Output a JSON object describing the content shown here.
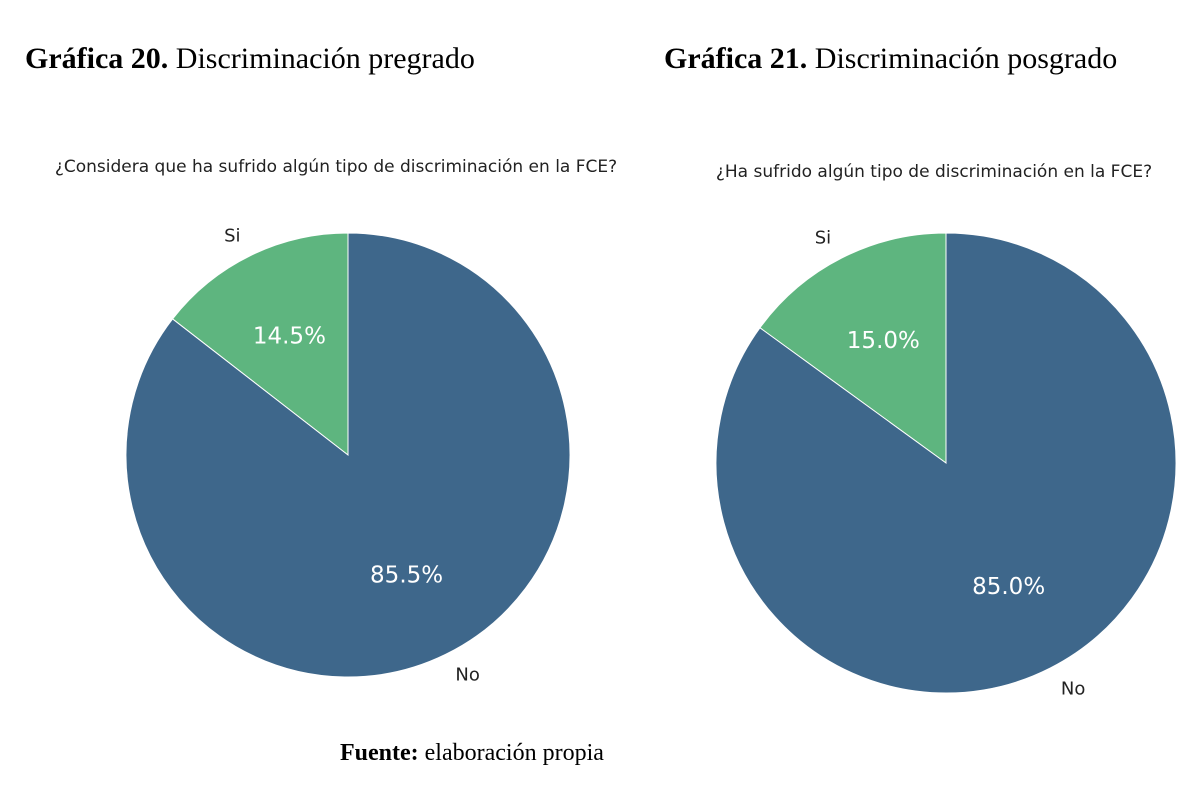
{
  "captions": [
    {
      "number": "Gráfica 20.",
      "text": "Discriminación pregrado"
    },
    {
      "number": "Gráfica 21.",
      "text": "Discriminación posgrado"
    }
  ],
  "source": {
    "label": "Fuente:",
    "text": "elaboración propia"
  },
  "colors": {
    "Si": "#5eb57f",
    "No": "#3e678b"
  },
  "chart_data": [
    {
      "type": "pie",
      "title": "¿Considera que ha sufrido algún tipo de discriminación en la FCE?",
      "categories": [
        "Si",
        "No"
      ],
      "values": [
        14.5,
        85.5
      ],
      "pct_labels": [
        "14.5%",
        "85.5%"
      ],
      "start_angle": "top, counterclockwise"
    },
    {
      "type": "pie",
      "title": "¿Ha sufrido algún tipo de discriminación en la FCE?",
      "categories": [
        "Si",
        "No"
      ],
      "values": [
        15.0,
        85.0
      ],
      "pct_labels": [
        "15.0%",
        "85.0%"
      ],
      "start_angle": "top, counterclockwise"
    }
  ]
}
